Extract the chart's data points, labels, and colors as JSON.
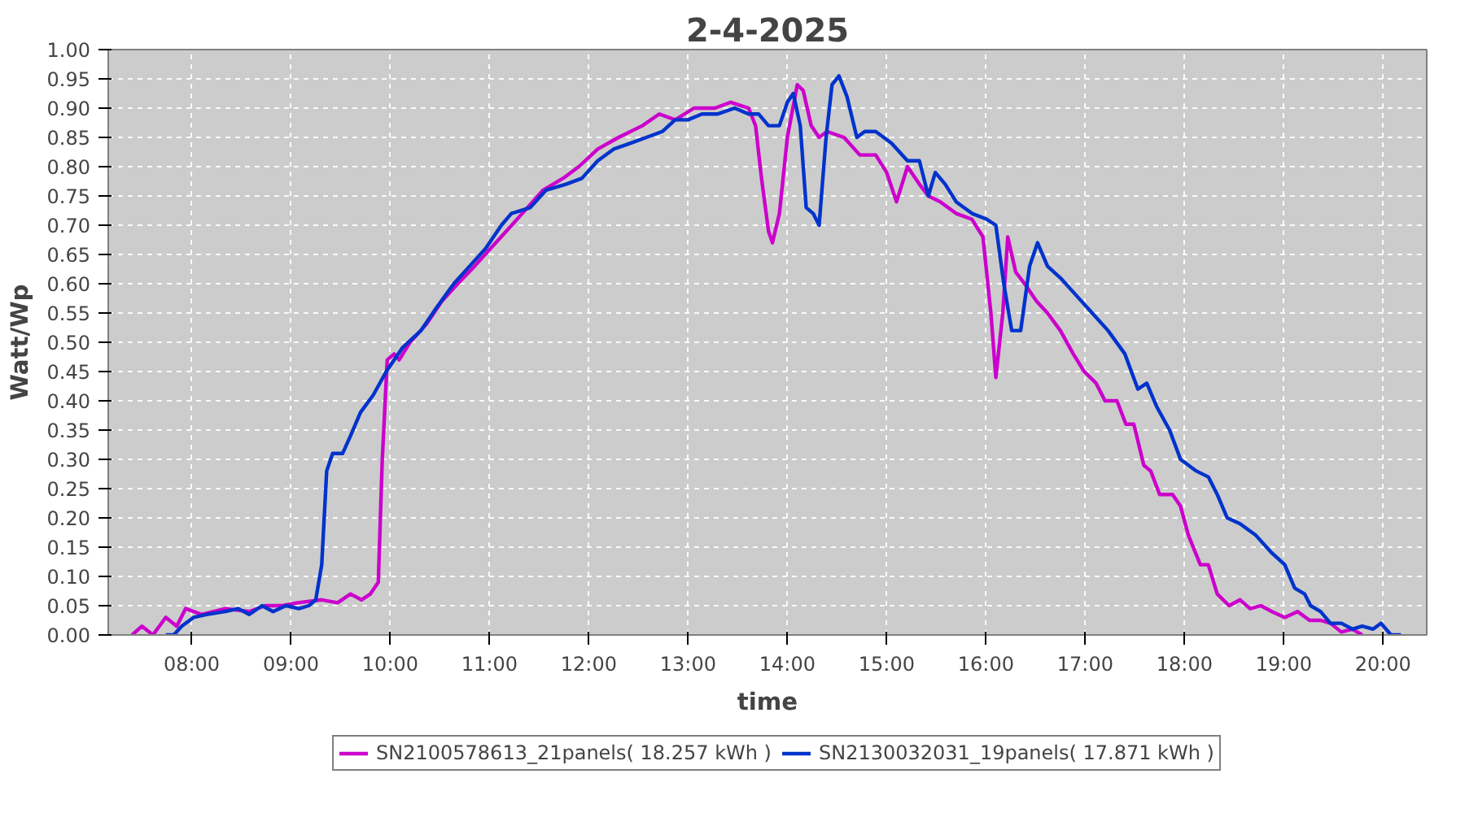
{
  "chart_data": {
    "type": "line",
    "title": "2-4-2025",
    "xlabel": "time",
    "ylabel": "Watt/Wp",
    "grid": true,
    "legend": "bottom",
    "line_style": "solid",
    "marker": "none",
    "xlim": [
      7.16,
      20.44
    ],
    "xticks": [
      {
        "value": 8,
        "label": "08:00"
      },
      {
        "value": 9,
        "label": "09:00"
      },
      {
        "value": 10,
        "label": "10:00"
      },
      {
        "value": 11,
        "label": "11:00"
      },
      {
        "value": 12,
        "label": "12:00"
      },
      {
        "value": 13,
        "label": "13:00"
      },
      {
        "value": 14,
        "label": "14:00"
      },
      {
        "value": 15,
        "label": "15:00"
      },
      {
        "value": 16,
        "label": "16:00"
      },
      {
        "value": 17,
        "label": "17:00"
      },
      {
        "value": 18,
        "label": "18:00"
      },
      {
        "value": 19,
        "label": "19:00"
      },
      {
        "value": 20,
        "label": "20:00"
      }
    ],
    "ylim": [
      0,
      1
    ],
    "yticks": [
      {
        "value": 0,
        "label": "0.00"
      },
      {
        "value": 0.05,
        "label": "0.05"
      },
      {
        "value": 0.1,
        "label": "0.10"
      },
      {
        "value": 0.15,
        "label": "0.15"
      },
      {
        "value": 0.2,
        "label": "0.20"
      },
      {
        "value": 0.25,
        "label": "0.25"
      },
      {
        "value": 0.3,
        "label": "0.30"
      },
      {
        "value": 0.35,
        "label": "0.35"
      },
      {
        "value": 0.4,
        "label": "0.40"
      },
      {
        "value": 0.45,
        "label": "0.45"
      },
      {
        "value": 0.5,
        "label": "0.50"
      },
      {
        "value": 0.55,
        "label": "0.55"
      },
      {
        "value": 0.6,
        "label": "0.60"
      },
      {
        "value": 0.65,
        "label": "0.65"
      },
      {
        "value": 0.7,
        "label": "0.70"
      },
      {
        "value": 0.75,
        "label": "0.75"
      },
      {
        "value": 0.8,
        "label": "0.80"
      },
      {
        "value": 0.85,
        "label": "0.85"
      },
      {
        "value": 0.9,
        "label": "0.90"
      },
      {
        "value": 0.95,
        "label": "0.95"
      },
      {
        "value": 1,
        "label": "1.00"
      }
    ],
    "series": [
      {
        "name": "SN2100578613_21panels( 18.257 kWh )",
        "color": "#cc00cc",
        "x": [
          7.4,
          7.5,
          7.61,
          7.74,
          7.85,
          7.94,
          8.1,
          8.34,
          8.58,
          8.74,
          8.91,
          9.07,
          9.31,
          9.47,
          9.6,
          9.71,
          9.8,
          9.88,
          9.92,
          9.97,
          10.04,
          10.09,
          10.2,
          10.36,
          10.52,
          10.68,
          10.85,
          11.01,
          11.17,
          11.33,
          11.54,
          11.74,
          11.9,
          12.09,
          12.3,
          12.54,
          12.71,
          12.87,
          13.06,
          13.27,
          13.43,
          13.61,
          13.68,
          13.74,
          13.81,
          13.85,
          13.92,
          14.0,
          14.1,
          14.16,
          14.24,
          14.32,
          14.4,
          14.57,
          14.73,
          14.89,
          15.0,
          15.1,
          15.21,
          15.33,
          15.42,
          15.54,
          15.7,
          15.86,
          15.97,
          16.05,
          16.1,
          16.17,
          16.22,
          16.3,
          16.39,
          16.51,
          16.62,
          16.75,
          16.88,
          16.99,
          17.11,
          17.2,
          17.32,
          17.41,
          17.49,
          17.59,
          17.66,
          17.75,
          17.88,
          17.96,
          18.04,
          18.16,
          18.24,
          18.33,
          18.45,
          18.56,
          18.66,
          18.77,
          18.88,
          19.01,
          19.14,
          19.26,
          19.37,
          19.47,
          19.58,
          19.69,
          19.79
        ],
        "values": [
          0.0,
          0.015,
          0.0,
          0.03,
          0.015,
          0.045,
          0.035,
          0.045,
          0.04,
          0.05,
          0.05,
          0.055,
          0.06,
          0.055,
          0.07,
          0.06,
          0.07,
          0.09,
          0.3,
          0.47,
          0.48,
          0.47,
          0.5,
          0.53,
          0.57,
          0.6,
          0.63,
          0.66,
          0.69,
          0.72,
          0.76,
          0.78,
          0.8,
          0.83,
          0.85,
          0.87,
          0.89,
          0.88,
          0.9,
          0.9,
          0.91,
          0.9,
          0.87,
          0.78,
          0.69,
          0.67,
          0.72,
          0.85,
          0.94,
          0.93,
          0.87,
          0.85,
          0.86,
          0.85,
          0.82,
          0.82,
          0.79,
          0.74,
          0.8,
          0.77,
          0.75,
          0.74,
          0.72,
          0.71,
          0.68,
          0.55,
          0.44,
          0.55,
          0.68,
          0.62,
          0.6,
          0.57,
          0.55,
          0.52,
          0.48,
          0.45,
          0.43,
          0.4,
          0.4,
          0.36,
          0.36,
          0.29,
          0.28,
          0.24,
          0.24,
          0.22,
          0.17,
          0.12,
          0.12,
          0.07,
          0.05,
          0.06,
          0.045,
          0.05,
          0.04,
          0.03,
          0.04,
          0.025,
          0.025,
          0.02,
          0.005,
          0.01,
          0.0
        ]
      },
      {
        "name": "SN2130032031_19panels( 17.871 kWh )",
        "color": "#0033cc",
        "x": [
          7.74,
          7.82,
          7.9,
          8.02,
          8.15,
          8.34,
          8.47,
          8.58,
          8.71,
          8.82,
          8.95,
          9.08,
          9.18,
          9.25,
          9.31,
          9.36,
          9.42,
          9.52,
          9.6,
          9.7,
          9.83,
          9.96,
          10.12,
          10.31,
          10.47,
          10.64,
          10.8,
          10.96,
          11.12,
          11.22,
          11.41,
          11.57,
          11.77,
          11.93,
          12.09,
          12.25,
          12.42,
          12.58,
          12.74,
          12.87,
          13.0,
          13.14,
          13.3,
          13.47,
          13.61,
          13.71,
          13.81,
          13.92,
          14.0,
          14.06,
          14.13,
          14.19,
          14.26,
          14.32,
          14.39,
          14.45,
          14.52,
          14.6,
          14.7,
          14.78,
          14.89,
          15.05,
          15.21,
          15.33,
          15.42,
          15.49,
          15.59,
          15.7,
          15.86,
          16.01,
          16.1,
          16.18,
          16.26,
          16.35,
          16.44,
          16.52,
          16.62,
          16.75,
          16.91,
          17.07,
          17.23,
          17.4,
          17.53,
          17.62,
          17.72,
          17.85,
          17.96,
          18.12,
          18.24,
          18.33,
          18.43,
          18.56,
          18.72,
          18.88,
          19.01,
          19.11,
          19.21,
          19.27,
          19.37,
          19.47,
          19.58,
          19.69,
          19.79,
          19.9,
          19.98,
          20.08,
          20.18
        ],
        "values": [
          0.0,
          0.0,
          0.015,
          0.03,
          0.035,
          0.04,
          0.045,
          0.035,
          0.05,
          0.04,
          0.05,
          0.045,
          0.05,
          0.06,
          0.12,
          0.28,
          0.31,
          0.31,
          0.34,
          0.38,
          0.41,
          0.45,
          0.49,
          0.52,
          0.56,
          0.6,
          0.63,
          0.66,
          0.7,
          0.72,
          0.73,
          0.76,
          0.77,
          0.78,
          0.81,
          0.83,
          0.84,
          0.85,
          0.86,
          0.88,
          0.88,
          0.89,
          0.89,
          0.9,
          0.89,
          0.89,
          0.87,
          0.87,
          0.91,
          0.925,
          0.87,
          0.73,
          0.72,
          0.7,
          0.85,
          0.94,
          0.955,
          0.92,
          0.85,
          0.86,
          0.86,
          0.84,
          0.81,
          0.81,
          0.75,
          0.79,
          0.77,
          0.74,
          0.72,
          0.71,
          0.7,
          0.6,
          0.52,
          0.52,
          0.63,
          0.67,
          0.63,
          0.61,
          0.58,
          0.55,
          0.52,
          0.48,
          0.42,
          0.43,
          0.39,
          0.35,
          0.3,
          0.28,
          0.27,
          0.24,
          0.2,
          0.19,
          0.17,
          0.14,
          0.12,
          0.08,
          0.07,
          0.05,
          0.04,
          0.02,
          0.02,
          0.01,
          0.015,
          0.01,
          0.02,
          0.0,
          0.0
        ]
      }
    ]
  }
}
